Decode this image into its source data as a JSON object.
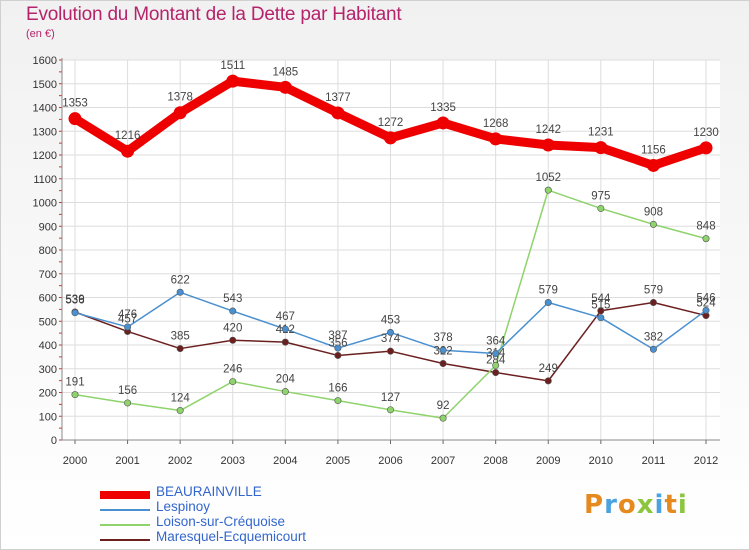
{
  "header": {
    "title": "Evolution du Montant de la Dette par Habitant",
    "subtitle": "(en €)"
  },
  "logo": {
    "text": "Proxiti",
    "colors": [
      "#e58a1f",
      "#4aa3df",
      "#e58a1f",
      "#8cc63f",
      "#4aa3df",
      "#e58a1f",
      "#8cc63f"
    ]
  },
  "chart_data": {
    "type": "line",
    "x": [
      "2000",
      "2001",
      "2002",
      "2003",
      "2004",
      "2005",
      "2006",
      "2007",
      "2008",
      "2009",
      "2010",
      "2011",
      "2012"
    ],
    "ylim": [
      0,
      1600
    ],
    "yticks": [
      0,
      100,
      200,
      300,
      400,
      500,
      600,
      700,
      800,
      900,
      1000,
      1100,
      1200,
      1300,
      1400,
      1500,
      1600
    ],
    "grid": true,
    "legend": "bottom-left",
    "title": "Evolution du Montant de la Dette par Habitant",
    "xlabel": "",
    "ylabel": "",
    "series": [
      {
        "name": "BEAURAINVILLE",
        "color": "#ee0000",
        "values": [
          1353,
          1216,
          1378,
          1511,
          1485,
          1377,
          1272,
          1335,
          1268,
          1242,
          1231,
          1156,
          1230
        ]
      },
      {
        "name": "Lespinoy",
        "color": "#4a90d0",
        "values": [
          536,
          476,
          622,
          543,
          467,
          387,
          453,
          378,
          364,
          579,
          515,
          382,
          546
        ]
      },
      {
        "name": "Loison-sur-Créquoise",
        "color": "#8ed36b",
        "values": [
          191,
          156,
          124,
          246,
          204,
          166,
          127,
          92,
          314,
          1052,
          975,
          908,
          848
        ]
      },
      {
        "name": "Maresquel-Ecquemicourt",
        "color": "#6b1f1f",
        "values": [
          539,
          457,
          385,
          420,
          412,
          356,
          374,
          322,
          284,
          249,
          544,
          579,
          524
        ]
      }
    ]
  }
}
